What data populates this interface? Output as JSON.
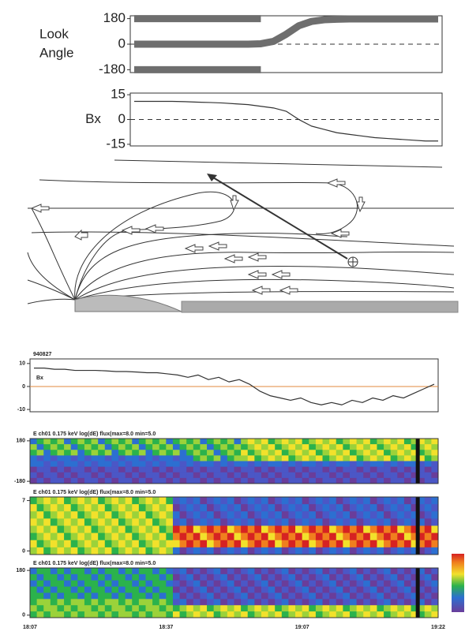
{
  "chart_data": [
    {
      "type": "line",
      "ylabel": [
        "Look",
        "Angle"
      ],
      "ylim": [
        -200,
        200
      ],
      "yticks": [
        180,
        0,
        -180
      ],
      "zero_line": true,
      "series": [
        {
          "color": "#6e6e6e",
          "values": [
            180,
            180,
            180,
            180,
            180,
            180,
            180,
            180,
            180,
            180,
            180,
            null,
            null,
            null,
            null,
            null,
            null,
            null,
            null,
            null,
            null,
            null,
            null,
            null,
            null
          ]
        },
        {
          "color": "#6e6e6e",
          "values": [
            -180,
            -180,
            -180,
            -180,
            -180,
            -180,
            -180,
            -180,
            -180,
            -180,
            -180,
            null,
            null,
            null,
            null,
            null,
            null,
            null,
            null,
            null,
            null,
            null,
            null,
            null,
            null
          ]
        },
        {
          "color": "#6e6e6e",
          "values": [
            0,
            0,
            0,
            0,
            0,
            0,
            0,
            0,
            0,
            0,
            3,
            20,
            70,
            130,
            160,
            172,
            176,
            178,
            178,
            178,
            178,
            178,
            178,
            178,
            178
          ]
        }
      ]
    },
    {
      "type": "line",
      "ylabel": [
        "Bx"
      ],
      "ylim": [
        -16,
        16
      ],
      "yticks": [
        15,
        0,
        -15
      ],
      "zero_line": true,
      "series": [
        {
          "color": "#333333",
          "values": [
            11,
            11,
            11,
            11,
            10.8,
            10.5,
            10.3,
            10,
            9.5,
            9,
            8,
            7,
            5,
            0,
            -4,
            -6,
            -8,
            -9,
            -10,
            -11,
            -11.5,
            -12,
            -12.5,
            -13,
            -13
          ]
        }
      ]
    },
    {
      "type": "line",
      "title": "940827",
      "label": "Bx",
      "ylim": [
        -11,
        12
      ],
      "yticks": [
        10,
        0,
        -10
      ],
      "zero_line": true,
      "zero_color": "#e08a3c",
      "series": [
        {
          "color": "#333333",
          "values": [
            8,
            8,
            7.5,
            7.5,
            7,
            7,
            7,
            6.8,
            6.5,
            6.5,
            6.3,
            6,
            6,
            5.5,
            5,
            4,
            5,
            3,
            4,
            2,
            3,
            1,
            -2,
            -4,
            -5,
            -6,
            -5,
            -7,
            -8,
            -7,
            -8,
            -6,
            -7,
            -5,
            -6,
            -4,
            -5,
            -3,
            -1,
            1
          ]
        }
      ]
    },
    {
      "type": "spectrogram",
      "title": "E ch01  0.175 keV  log(dE) flux(max=8.0 min=5.0",
      "ylim": [
        -200,
        200
      ],
      "yticks": [
        180,
        -180
      ],
      "variant": 0
    },
    {
      "type": "spectrogram",
      "title": "E ch01  0.175 keV  log(dE) flux(max=8.0 min=5.0",
      "ylim": [
        -0.5,
        7.5
      ],
      "yticks": [
        7,
        0
      ],
      "variant": 1
    },
    {
      "type": "spectrogram",
      "title": "E ch01  0.175 keV  log(dE) flux(max=8.0 min=5.0",
      "ylim": [
        -10,
        190
      ],
      "yticks": [
        180,
        0
      ],
      "variant": 2,
      "time_labels": [
        "18:07",
        "18:37",
        "19:07",
        "19:22"
      ]
    }
  ]
}
